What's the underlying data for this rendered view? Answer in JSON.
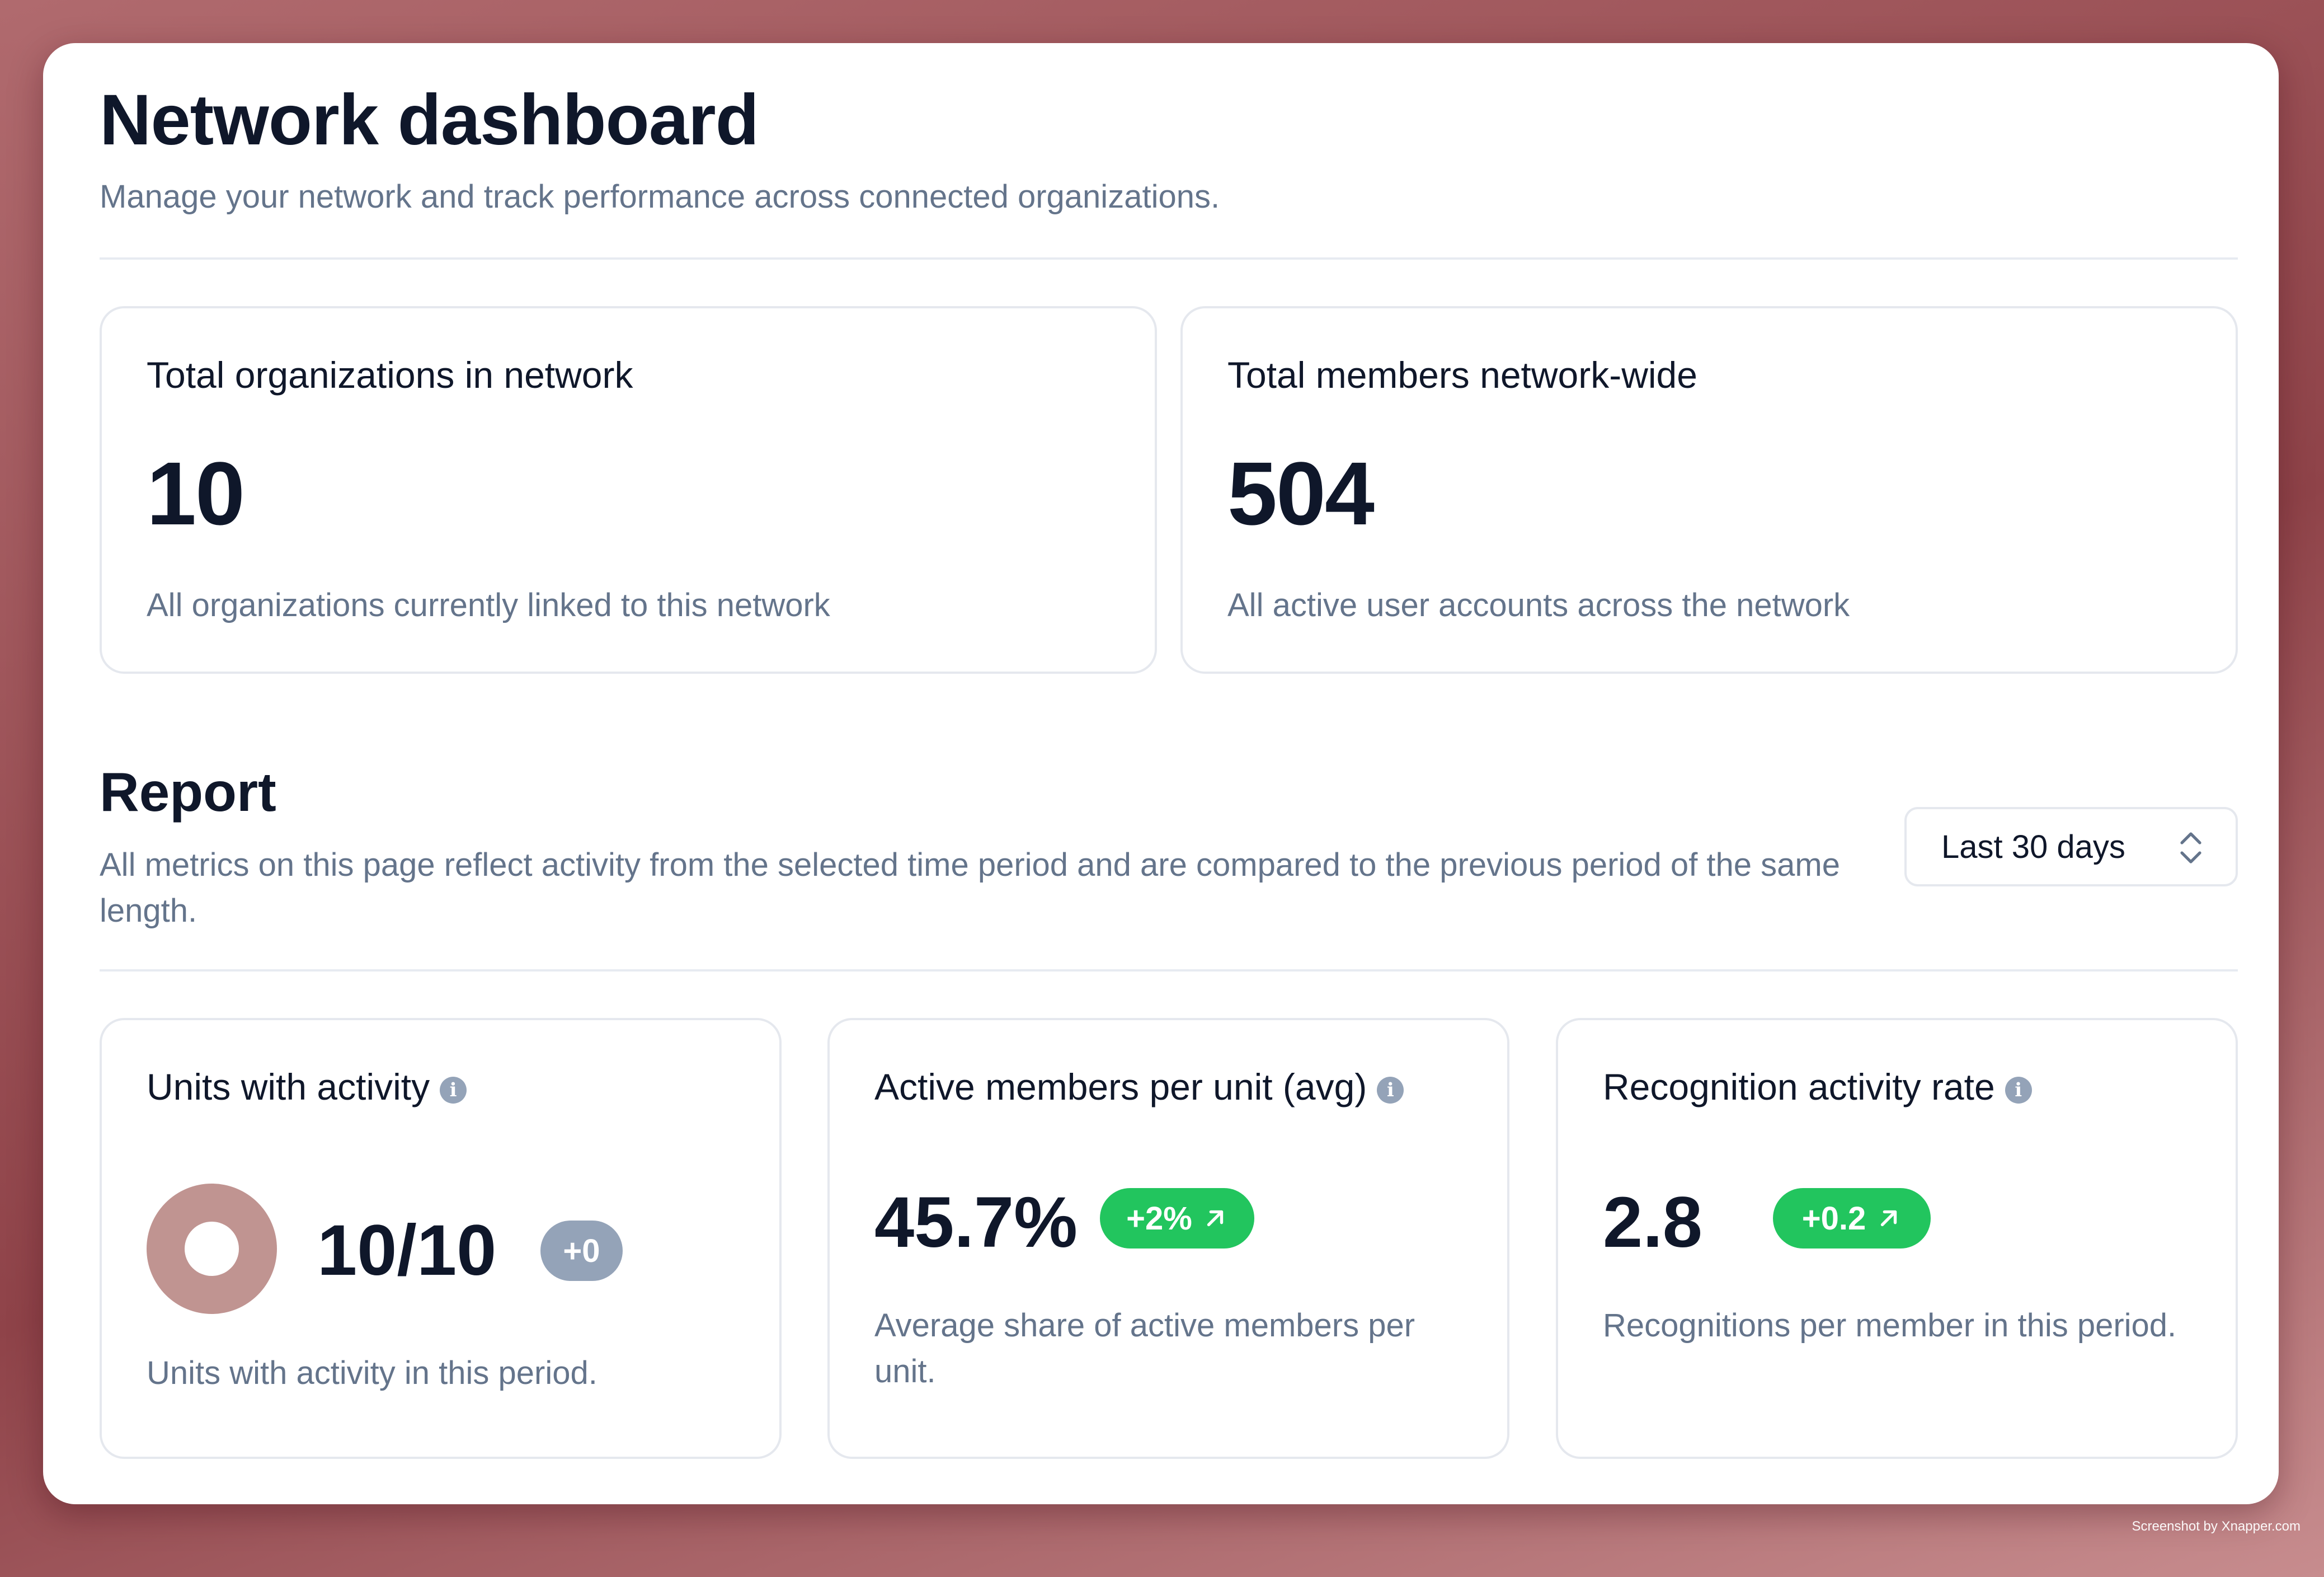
{
  "header": {
    "title": "Network dashboard",
    "subtitle": "Manage your network and track performance across connected organizations."
  },
  "summary_cards": [
    {
      "title": "Total organizations in network",
      "value": "10",
      "description": "All organizations currently linked to this network"
    },
    {
      "title": "Total members network-wide",
      "value": "504",
      "description": "All active user accounts across the network"
    }
  ],
  "report": {
    "title": "Report",
    "description": "All metrics on this page reflect activity from the selected time period and are compared to the previous period of the same length.",
    "period_select": {
      "selected": "Last 30 days"
    }
  },
  "metrics": [
    {
      "title": "Units with activity",
      "value": "10/10",
      "change": "+0",
      "trend": "neutral",
      "description": "Units with activity in this period.",
      "icon": "info-icon",
      "donut_color": "#c09491",
      "active_fraction": 1.0
    },
    {
      "title": "Active members per unit (avg)",
      "value": "45.7%",
      "change": "+2%",
      "trend": "up",
      "description": "Average share of active members per unit.",
      "icon": "info-icon"
    },
    {
      "title": "Recognition activity rate",
      "value": "2.8",
      "change": "+0.2",
      "trend": "up",
      "description": "Recognitions per member in this period.",
      "icon": "info-icon"
    }
  ],
  "colors": {
    "positive_badge": "#22c55e",
    "neutral_badge": "#94a3b8",
    "muted_text": "#64748b"
  },
  "watermark": "Screenshot by Xnapper.com"
}
